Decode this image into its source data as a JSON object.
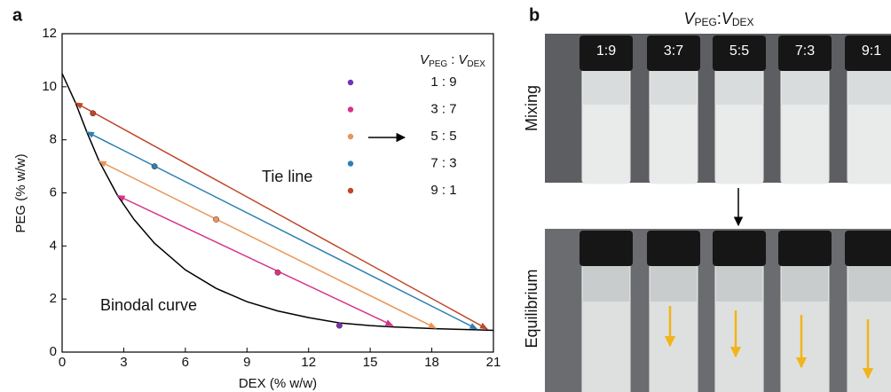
{
  "chart_data": {
    "type": "scatter",
    "panel_label": "a",
    "xlabel": "DEX (% w/w)",
    "ylabel": "PEG (% w/w)",
    "xlim": [
      0,
      21
    ],
    "xticks": [
      0,
      3,
      6,
      9,
      12,
      15,
      18,
      21
    ],
    "ylim": [
      0,
      12
    ],
    "yticks": [
      0,
      2,
      4,
      6,
      8,
      10,
      12
    ],
    "legend_title": {
      "v1": "V",
      "s1": "PEG",
      "sep": ":",
      "v2": "V",
      "s2": "DEX"
    },
    "annotations": [
      "Tie line",
      "Binodal curve"
    ],
    "series": [
      {
        "name": "1 : 9",
        "color": "#7232b8",
        "x": [
          13.5
        ],
        "values": [
          1.0
        ]
      },
      {
        "name": "3 : 7",
        "color": "#d6338a",
        "x": [
          10.5
        ],
        "values": [
          3.0
        ],
        "tie_line": {
          "x": [
            2.7,
            16.1
          ],
          "y": [
            5.9,
            1.0
          ]
        }
      },
      {
        "name": "5 : 5",
        "color": "#e8955a",
        "x": [
          7.5
        ],
        "values": [
          5.0
        ],
        "tie_line": {
          "x": [
            1.8,
            18.2
          ],
          "y": [
            7.2,
            0.9
          ]
        }
      },
      {
        "name": "7 : 3",
        "color": "#2e7fb3",
        "x": [
          4.5
        ],
        "values": [
          7.0
        ],
        "tie_line": {
          "x": [
            1.2,
            20.2
          ],
          "y": [
            8.3,
            0.87
          ]
        }
      },
      {
        "name": "9 : 1",
        "color": "#c0462a",
        "x": [
          1.5
        ],
        "values": [
          9.0
        ],
        "tie_line": {
          "x": [
            0.65,
            20.7
          ],
          "y": [
            9.4,
            0.87
          ]
        }
      }
    ],
    "binodal": {
      "color": "#000000",
      "x": [
        0,
        0.65,
        1.2,
        1.8,
        2.7,
        3.5,
        4.5,
        6,
        7.5,
        9,
        10.5,
        12,
        13.5,
        15,
        16.1,
        18.2,
        20.2,
        21
      ],
      "values": [
        10.5,
        9.4,
        8.3,
        7.2,
        5.9,
        5.0,
        4.1,
        3.1,
        2.4,
        1.9,
        1.55,
        1.3,
        1.1,
        1.0,
        0.95,
        0.88,
        0.84,
        0.82
      ]
    }
  },
  "photos": {
    "panel_label": "b",
    "title": {
      "v1": "V",
      "s1": "PEG",
      "sep": ":",
      "v2": "V",
      "s2": "DEX"
    },
    "rows": [
      "Mixing",
      "Equilibrium"
    ],
    "cap_labels": [
      "1:9",
      "3:7",
      "5:5",
      "7:3",
      "9:1"
    ]
  }
}
